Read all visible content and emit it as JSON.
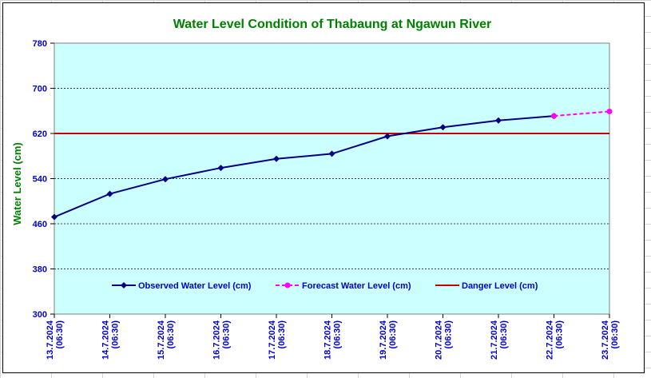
{
  "colors": {
    "title": "#008000",
    "axis_text": "#0000CC",
    "plot_bg": "#CCFFFF",
    "observed": "#000080",
    "forecast": "#FF00FF",
    "danger": "#CC0000"
  },
  "chart_data": {
    "type": "line",
    "title": "Water Level Condition of Thabaung at Ngawun River",
    "ylabel": "Water Level (cm)",
    "xlabel": "",
    "ylim": [
      300,
      780
    ],
    "yticks": [
      300,
      380,
      460,
      540,
      620,
      700,
      780
    ],
    "grid": "horizontal dashed",
    "legend_position": "inside-bottom",
    "categories": [
      [
        "13.7.2024",
        "(06:30)"
      ],
      [
        "14.7.2024",
        "(06:30)"
      ],
      [
        "15.7.2024",
        "(06:30)"
      ],
      [
        "16.7.2024",
        "(06:30)"
      ],
      [
        "17.7.2024",
        "(06:30)"
      ],
      [
        "18.7.2024",
        "(06:30)"
      ],
      [
        "19.7.2024",
        "(06:30)"
      ],
      [
        "20.7.2024",
        "(06:30)"
      ],
      [
        "21.7.2024",
        "(06:30)"
      ],
      [
        "22.7.2024",
        "(06:30)"
      ],
      [
        "23.7.2024",
        "(06:30)"
      ]
    ],
    "series": [
      {
        "name": "Observed Water Level (cm)",
        "values": [
          472,
          513,
          539,
          559,
          575,
          584,
          615,
          631,
          643,
          651,
          null
        ]
      },
      {
        "name": "Forecast Water Level (cm)",
        "values": [
          null,
          null,
          null,
          null,
          null,
          null,
          null,
          null,
          null,
          651,
          659
        ]
      },
      {
        "name": "Danger Level (cm)",
        "values": [
          620,
          620,
          620,
          620,
          620,
          620,
          620,
          620,
          620,
          620,
          620
        ]
      }
    ]
  }
}
